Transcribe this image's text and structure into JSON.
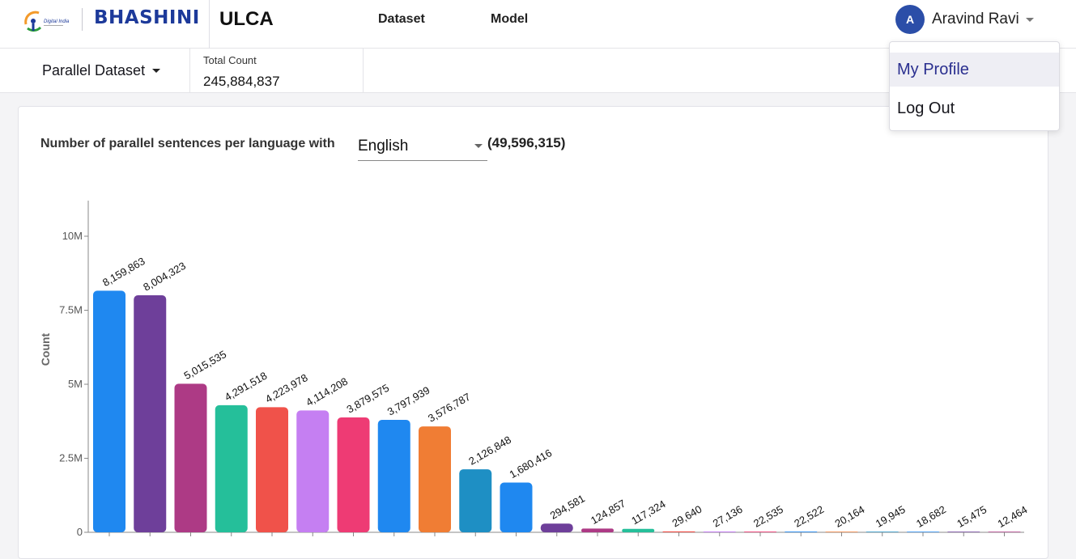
{
  "header": {
    "brand": "BHASHINI",
    "logo_text": "Digital India",
    "app_name": "ULCA",
    "nav": [
      "Dataset",
      "Model"
    ],
    "user": {
      "initial": "A",
      "name": "Aravind Ravi"
    }
  },
  "toolbar": {
    "dataset_type": "Parallel Dataset",
    "total_count_label": "Total Count",
    "total_count_value": "245,884,837"
  },
  "chart_section": {
    "title": "Number of parallel sentences per language with",
    "language": "English",
    "total": "(49,596,315)"
  },
  "user_menu": {
    "items": [
      "My Profile",
      "Log Out"
    ],
    "active_index": 0
  },
  "chart_data": {
    "type": "bar",
    "ylabel": "Count",
    "ylim": [
      0,
      11200000
    ],
    "yticks": [
      0,
      2500000,
      5000000,
      7500000,
      10000000
    ],
    "ytick_labels": [
      "0",
      "2.5M",
      "5M",
      "7.5M",
      "10M"
    ],
    "values": [
      8159863,
      8004323,
      5015535,
      4291518,
      4223978,
      4114208,
      3879575,
      3797939,
      3576787,
      2126848,
      1680416,
      294581,
      124857,
      117324,
      29640,
      27136,
      22535,
      22522,
      20164,
      19945,
      18682,
      15475,
      12464
    ],
    "data_labels": [
      "8,159,863",
      "8,004,323",
      "5,015,535",
      "4,291,518",
      "4,223,978",
      "4,114,208",
      "3,879,575",
      "3,797,939",
      "3,576,787",
      "2,126,848",
      "1,680,416",
      "294,581",
      "124,857",
      "117,324",
      "29,640",
      "27,136",
      "22,535",
      "22,522",
      "20,164",
      "19,945",
      "18,682",
      "15,475",
      "12,464"
    ],
    "colors": [
      "#1f88f0",
      "#6e3f9a",
      "#ad3a85",
      "#25bf9a",
      "#f0524a",
      "#c57ff2",
      "#ee3b74",
      "#1f88f0",
      "#f07d34",
      "#1e8fc4",
      "#1f88f0",
      "#6e3f9a",
      "#ad3a85",
      "#25bf9a",
      "#f0524a",
      "#c57ff2",
      "#ee3b74",
      "#1f88f0",
      "#f07d34",
      "#1e8fc4",
      "#1f88f0",
      "#6e3f9a",
      "#ad3a85"
    ]
  }
}
